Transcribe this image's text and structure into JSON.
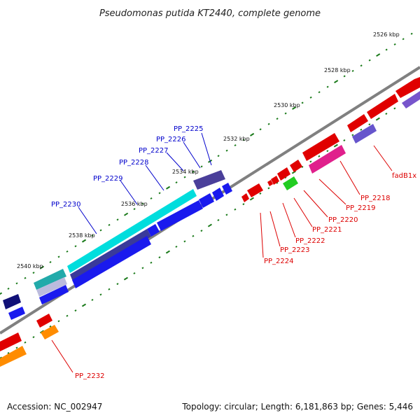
{
  "title": "Pseudomonas putida KT2440, complete genome",
  "footer": {
    "accession": "Accession: NC_002947",
    "summary": "Topology: circular; Length: 6,181,863 bp; Genes: 5,446"
  },
  "colors": {
    "backbone": "#888888",
    "tick": "#1a7a1a",
    "minus_label": "#0000cc",
    "plus_label": "#dd0000"
  },
  "ticks": [
    {
      "text": "2526 kbp"
    },
    {
      "text": "2528 kbp"
    },
    {
      "text": "2530 kbp"
    },
    {
      "text": "2532 kbp"
    },
    {
      "text": "2534 kbp"
    },
    {
      "text": "2536 kbp"
    },
    {
      "text": "2538 kbp"
    },
    {
      "text": "2540 kbp"
    }
  ],
  "labels": [
    {
      "text": "fadB1x"
    },
    {
      "text": "PP_2218"
    },
    {
      "text": "PP_2219"
    },
    {
      "text": "PP_2220"
    },
    {
      "text": "PP_2221"
    },
    {
      "text": "PP_2222"
    },
    {
      "text": "PP_2223"
    },
    {
      "text": "PP_2224"
    },
    {
      "text": "PP_2225"
    },
    {
      "text": "PP_2226"
    },
    {
      "text": "PP_2227"
    },
    {
      "text": "PP_2228"
    },
    {
      "text": "PP_2229"
    },
    {
      "text": "PP_2230"
    },
    {
      "text": "PP_2232"
    }
  ]
}
